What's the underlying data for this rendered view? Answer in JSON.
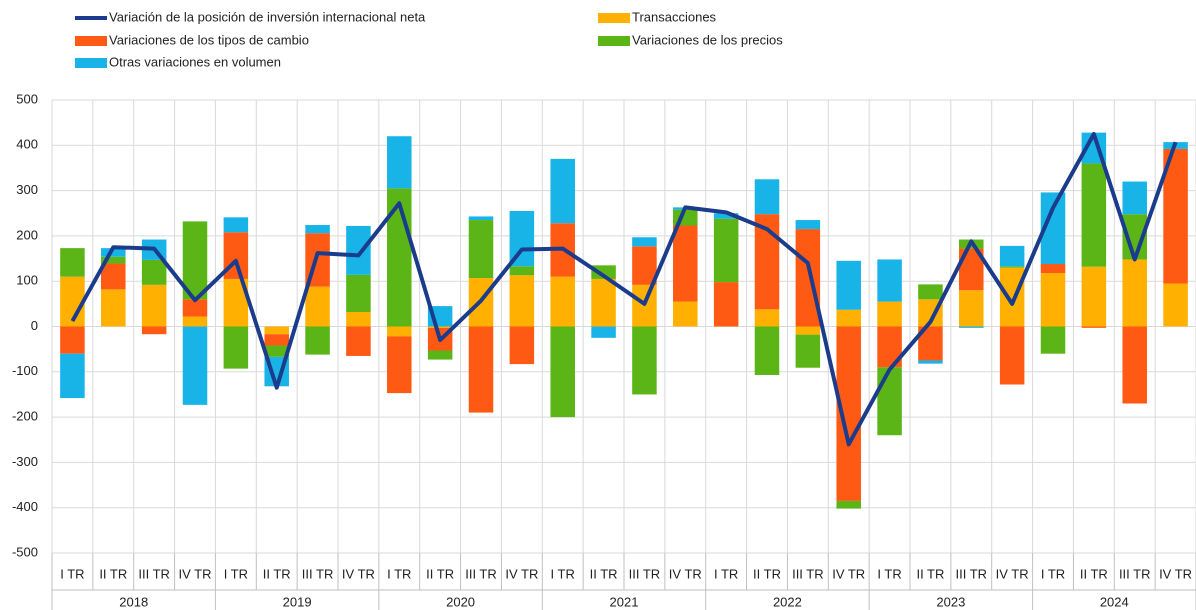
{
  "chart_data": {
    "type": "bar",
    "stacked": true,
    "categories": [
      "I TR",
      "II TR",
      "III TR",
      "IV TR",
      "I TR",
      "II TR",
      "III TR",
      "IV TR",
      "I TR",
      "II TR",
      "III TR",
      "IV TR",
      "I TR",
      "II TR",
      "III TR",
      "IV TR",
      "I TR",
      "II TR",
      "III TR",
      "IV TR",
      "I TR",
      "II TR",
      "III TR",
      "IV TR",
      "I TR",
      "II TR",
      "III TR",
      "IV TR"
    ],
    "groups": [
      "2018",
      "2019",
      "2020",
      "2021",
      "2022",
      "2023",
      "2024"
    ],
    "ylim": [
      -500,
      500
    ],
    "yticks": [
      -500,
      -400,
      -300,
      -200,
      -100,
      0,
      100,
      200,
      300,
      400,
      500
    ],
    "grid": true,
    "series": [
      {
        "name": "Variación de la posición de inversión internacional neta",
        "type": "line",
        "color": "#1b3c8c",
        "values": [
          12,
          175,
          172,
          58,
          145,
          -135,
          162,
          157,
          272,
          -30,
          57,
          170,
          172,
          112,
          50,
          263,
          252,
          215,
          140,
          -260,
          -95,
          10,
          188,
          50,
          262,
          425,
          148,
          407
        ]
      },
      {
        "name": "Transacciones",
        "color": "#ffb000",
        "values": [
          110,
          82,
          92,
          22,
          105,
          -17,
          88,
          32,
          -22,
          -3,
          107,
          113,
          110,
          105,
          92,
          55,
          0,
          38,
          -18,
          37,
          55,
          60,
          80,
          130,
          118,
          132,
          148,
          95
        ]
      },
      {
        "name": "Variaciones de los tipos de cambio",
        "color": "#ff5a14",
        "values": [
          -60,
          57,
          -17,
          38,
          103,
          -25,
          118,
          -65,
          -125,
          -50,
          -190,
          -83,
          118,
          0,
          85,
          168,
          98,
          210,
          215,
          -385,
          -90,
          -75,
          92,
          -128,
          20,
          -3,
          -170,
          297
        ]
      },
      {
        "name": "Variaciones de los precios",
        "color": "#5cb516",
        "values": [
          63,
          15,
          55,
          172,
          -93,
          -25,
          -62,
          82,
          305,
          -20,
          128,
          20,
          -200,
          30,
          -150,
          35,
          140,
          -107,
          -73,
          -17,
          -150,
          33,
          20,
          3,
          -60,
          228,
          100,
          0
        ]
      },
      {
        "name": "Otras variaciones en volumen",
        "color": "#18b4e8",
        "values": [
          -98,
          19,
          45,
          -173,
          33,
          -65,
          18,
          108,
          115,
          45,
          8,
          122,
          142,
          -25,
          20,
          5,
          12,
          77,
          20,
          108,
          93,
          -7,
          -3,
          45,
          158,
          68,
          72,
          15
        ]
      }
    ]
  }
}
